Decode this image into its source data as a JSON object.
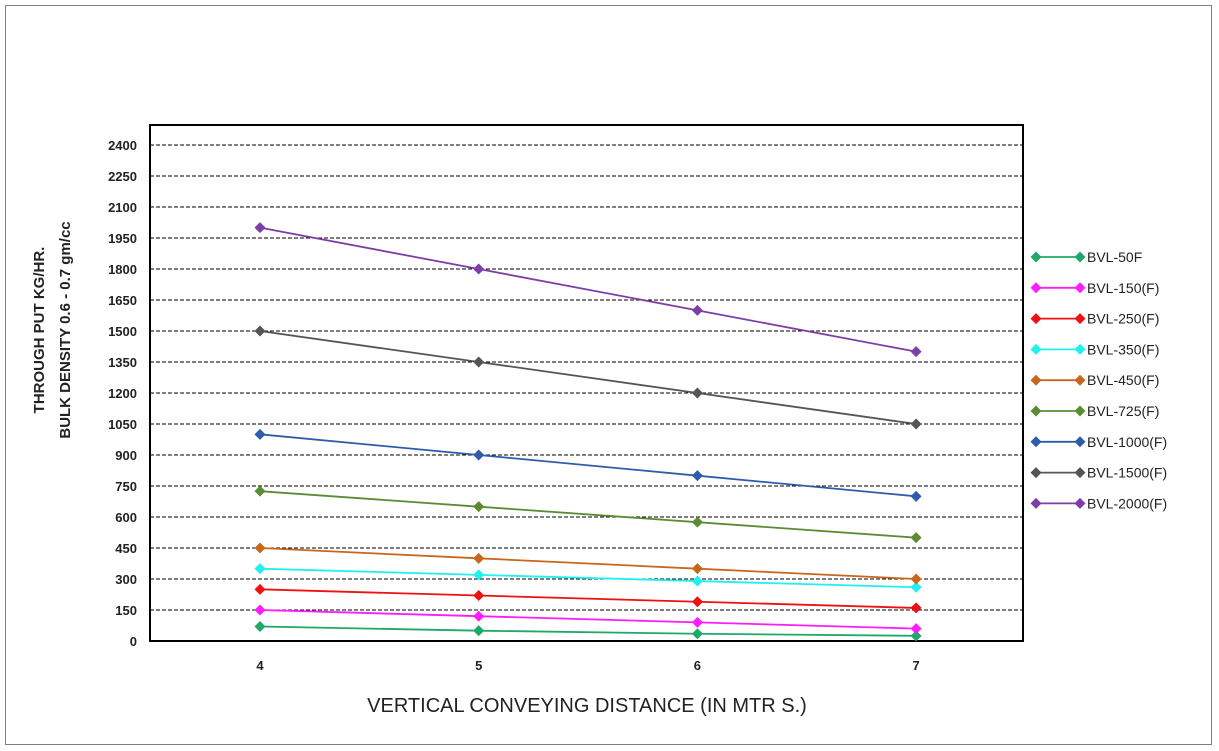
{
  "chart_data": {
    "type": "line",
    "title": "",
    "xlabel": "VERTICAL CONVEYING DISTANCE (IN MTR S.)",
    "ylabel_lines": [
      "THROUGH PUT KG/HR.",
      "BULK DENSITY  0.6 - 0.7 gm/cc"
    ],
    "x": [
      4,
      5,
      6,
      7
    ],
    "x_tick_labels": [
      "4",
      "5",
      "6",
      "7"
    ],
    "ylim": [
      0,
      2400
    ],
    "y_ticks": [
      0,
      150,
      300,
      450,
      600,
      750,
      900,
      1050,
      1200,
      1350,
      1500,
      1650,
      1800,
      1950,
      2100,
      2250,
      2400
    ],
    "grid": "horizontal dashed",
    "legend_position": "right",
    "marker": "diamond",
    "series": [
      {
        "name": "BVL-50F",
        "color": "#1fa868",
        "values": [
          70,
          50,
          35,
          25
        ]
      },
      {
        "name": "BVL-150(F)",
        "color": "#ff1cff",
        "values": [
          150,
          120,
          90,
          60
        ]
      },
      {
        "name": "BVL-250(F)",
        "color": "#ee1111",
        "values": [
          250,
          220,
          190,
          160
        ]
      },
      {
        "name": "BVL-350(F)",
        "color": "#1ff0f0",
        "values": [
          350,
          320,
          290,
          260
        ]
      },
      {
        "name": "BVL-450(F)",
        "color": "#c8661e",
        "values": [
          450,
          400,
          350,
          300
        ]
      },
      {
        "name": "BVL-725(F)",
        "color": "#5b8c34",
        "values": [
          725,
          650,
          575,
          500
        ]
      },
      {
        "name": "BVL-1000(F)",
        "color": "#2e5cab",
        "values": [
          1000,
          900,
          800,
          700
        ]
      },
      {
        "name": "BVL-1500(F)",
        "color": "#555555",
        "values": [
          1500,
          1350,
          1200,
          1050
        ]
      },
      {
        "name": "BVL-2000(F)",
        "color": "#7d3ea6",
        "values": [
          2000,
          1800,
          1600,
          1400
        ]
      }
    ]
  }
}
